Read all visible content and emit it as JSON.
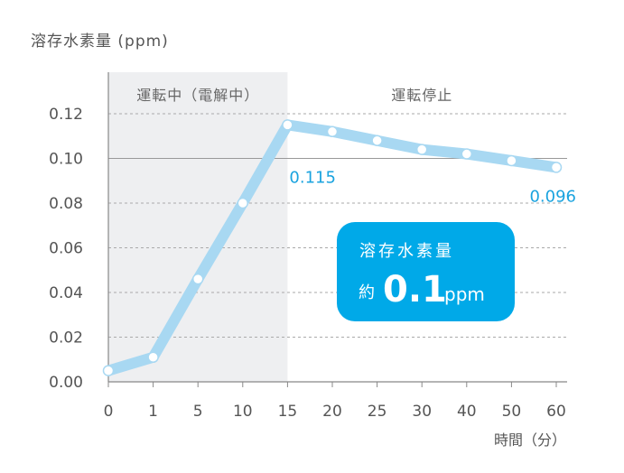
{
  "chart_data": {
    "type": "line",
    "ylabel": "溶存水素量 (ppm)",
    "xlabel": "時間（分）",
    "categories": [
      "0",
      "1",
      "5",
      "10",
      "15",
      "20",
      "25",
      "30",
      "40",
      "50",
      "60"
    ],
    "series": [
      {
        "values": [
          0.005,
          0.011,
          0.046,
          0.08,
          0.115,
          0.112,
          0.108,
          0.104,
          0.102,
          0.099,
          0.096
        ]
      }
    ],
    "ylim": [
      0,
      0.12
    ],
    "yticks": [
      "0.00",
      "0.02",
      "0.04",
      "0.06",
      "0.08",
      "0.10",
      "0.12"
    ],
    "regions": [
      {
        "label": "運転中（電解中）",
        "from": "0",
        "to": "15",
        "shaded": true
      },
      {
        "label": "運転停止",
        "from": "15",
        "to": "60",
        "shaded": false
      }
    ],
    "data_labels": [
      {
        "category": "15",
        "text": "0.115"
      },
      {
        "category": "60",
        "text": "0.096"
      }
    ],
    "callout": {
      "title": "溶存水素量",
      "prefix": "約",
      "value": "0.1",
      "unit": "ppm"
    },
    "colors": {
      "line": "#a8d8f2",
      "label": "#1aa3df",
      "callout_bg": "#00a9e8",
      "shade": "#eeeff1"
    }
  }
}
